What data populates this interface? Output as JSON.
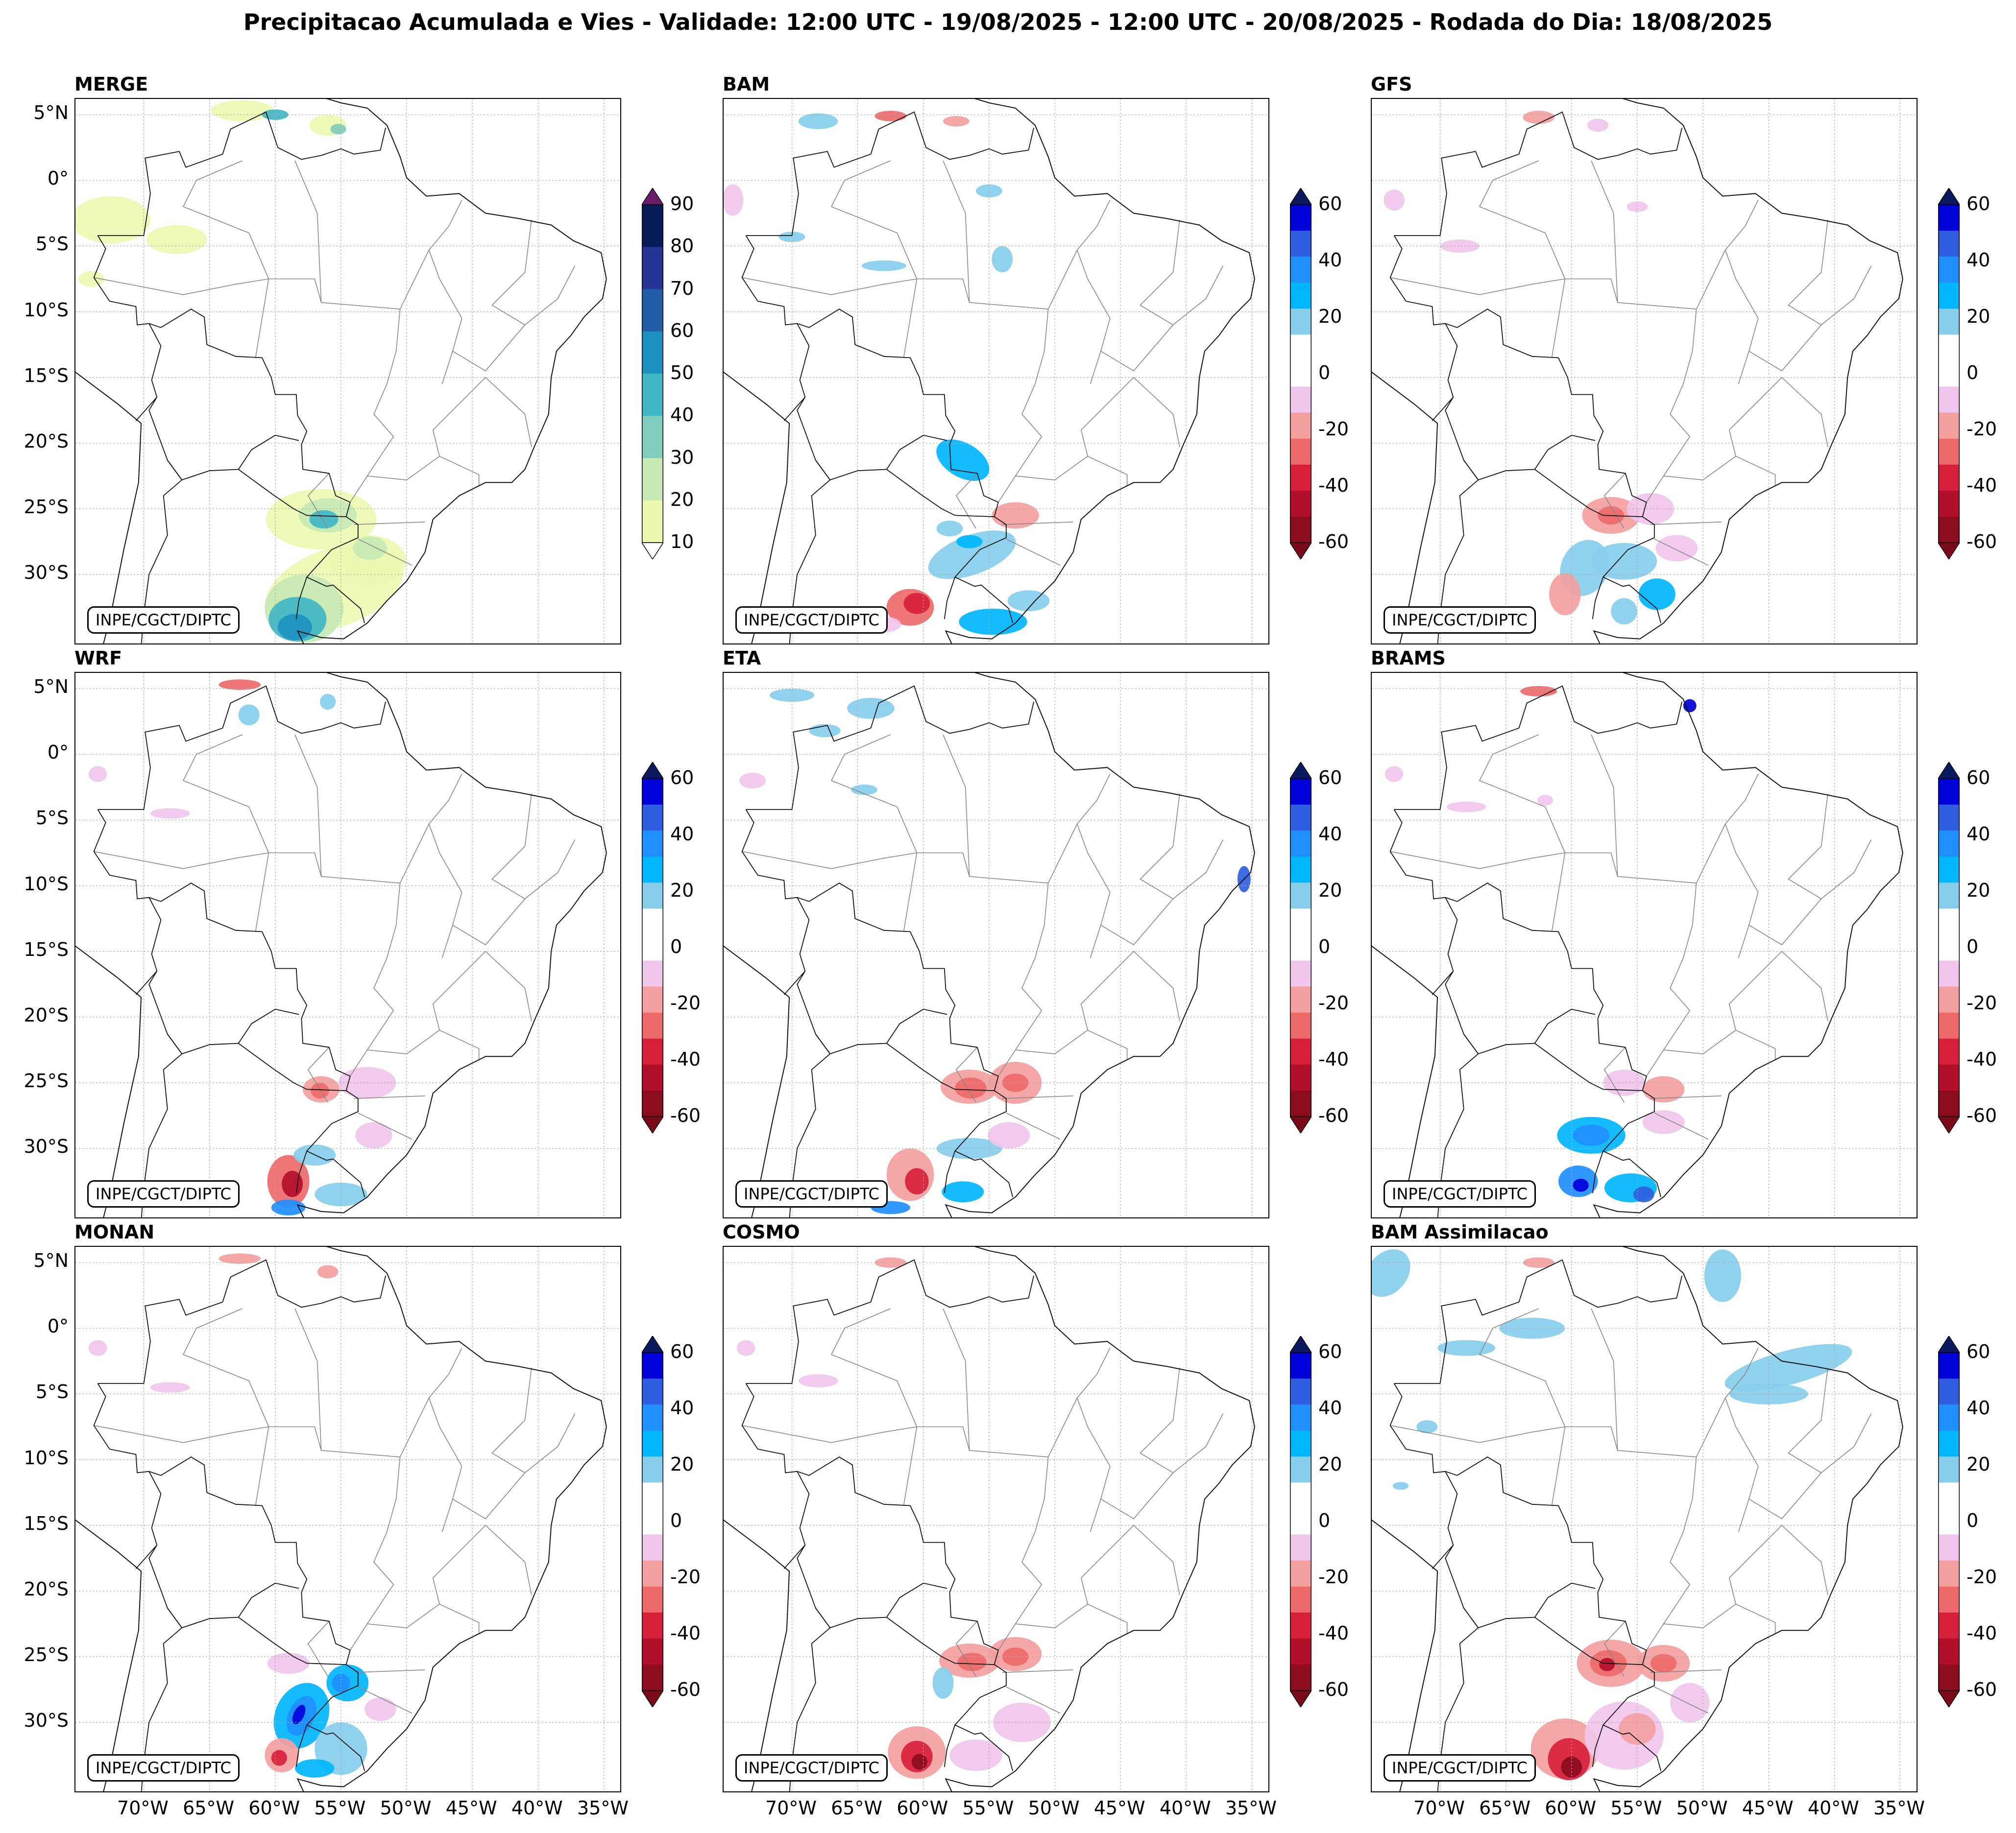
{
  "title": "Precipitacao Acumulada e Vies - Validade: 12:00 UTC - 19/08/2025 - 12:00 UTC - 20/08/2025 - Rodada do Dia: 18/08/2025",
  "credit": "INPE/CGCT/DIPTC",
  "lat_labels": [
    "5°N",
    "0°",
    "5°S",
    "10°S",
    "15°S",
    "20°S",
    "25°S",
    "30°S"
  ],
  "lon_labels": [
    "70°W",
    "65°W",
    "60°W",
    "55°W",
    "50°W",
    "45°W",
    "40°W",
    "35°W"
  ],
  "precip_colorbar": {
    "labels": [
      "90",
      "80",
      "70",
      "60",
      "50",
      "40",
      "30",
      "20",
      "10"
    ],
    "colors": [
      "#081d58",
      "#253494",
      "#225ea8",
      "#1d91c0",
      "#41b6c4",
      "#7fcdbb",
      "#c7e9b4",
      "#edf8b1"
    ],
    "over_color": "#6a1b6a"
  },
  "bias_colorbar": {
    "labels": [
      "60",
      "40",
      "20",
      "0",
      "-20",
      "-40",
      "-60"
    ],
    "colors": [
      "#0000d8",
      "#2f5fe0",
      "#1f8fff",
      "#00b6ff",
      "#87ceeb",
      "#ffffff",
      "#ffffff",
      "#f0c6ec",
      "#f4a0a0",
      "#ee6a6a",
      "#d8203c",
      "#b20f2a",
      "#8b0d1d"
    ],
    "over_color": "#0b1a5e",
    "under_color": "#7a0a1a"
  },
  "panels": [
    {
      "name": "MERGE",
      "type": "precip"
    },
    {
      "name": "BAM",
      "type": "bias"
    },
    {
      "name": "GFS",
      "type": "bias"
    },
    {
      "name": "WRF",
      "type": "bias"
    },
    {
      "name": "ETA",
      "type": "bias"
    },
    {
      "name": "BRAMS",
      "type": "bias"
    },
    {
      "name": "MONAN",
      "type": "bias"
    },
    {
      "name": "COSMO",
      "type": "bias"
    },
    {
      "name": "BAM Assimilacao",
      "type": "bias"
    }
  ]
}
